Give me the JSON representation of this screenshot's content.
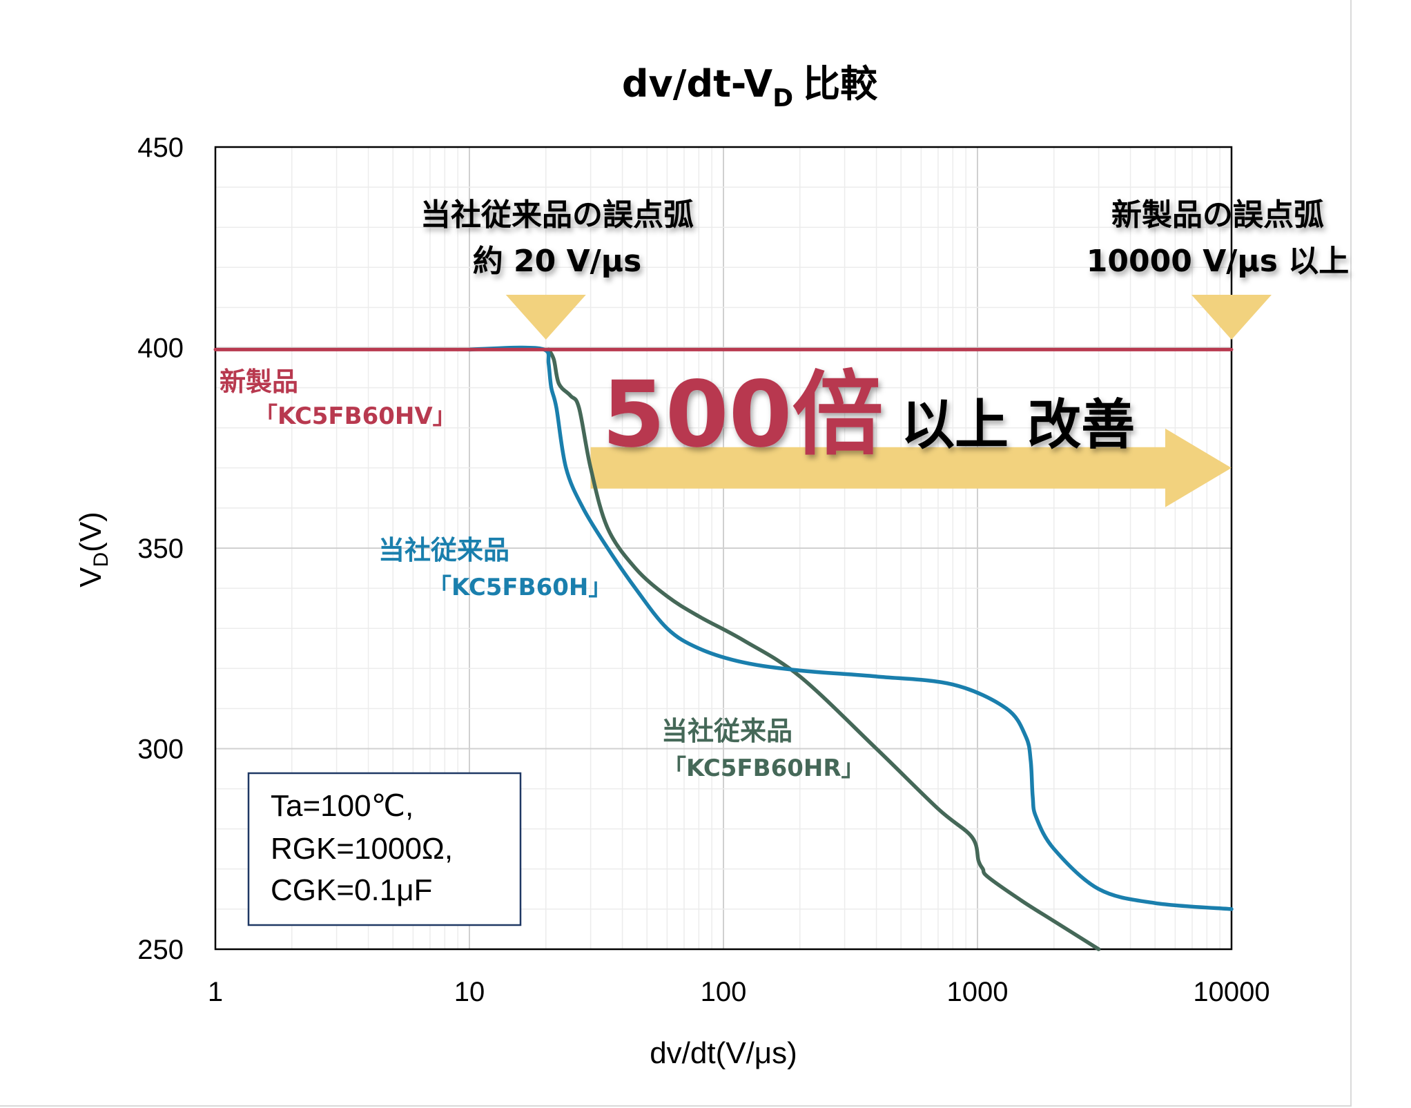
{
  "chart_data": {
    "type": "line",
    "title": "dv/dt-V",
    "title_subscript": "D",
    "title_suffix": "比較",
    "xlabel": "dv/dt(V/μs)",
    "ylabel": "V",
    "ylabel_subscript": "D",
    "ylabel_suffix": "(V)",
    "x_scale": "log",
    "xlim": [
      1,
      10000
    ],
    "ylim": [
      250,
      450
    ],
    "x_ticks": [
      "1",
      "10",
      "100",
      "1000",
      "10000"
    ],
    "y_ticks": [
      "250",
      "300",
      "350",
      "400",
      "450"
    ],
    "grid": true,
    "series": [
      {
        "name": "新製品「KC5FB60HV」",
        "label_line1": "新製品",
        "label_line2": "「KC5FB60HV」",
        "color": "#b8394f",
        "x": [
          1,
          10000
        ],
        "y": [
          399.5,
          399.5
        ]
      },
      {
        "name": "当社従来品「KC5FB60H」",
        "label_line1": "当社従来品",
        "label_line2": "「KC5FB60H」",
        "color": "#1a7fad",
        "x": [
          10,
          16,
          20,
          20.5,
          21,
          22,
          24,
          28,
          35,
          45,
          60,
          80,
          120,
          200,
          400,
          800,
          1300,
          1550,
          1620,
          1650,
          1700,
          2000,
          3000,
          5000,
          10000
        ],
        "y": [
          399.5,
          400,
          399.3,
          396,
          390,
          385,
          370,
          360,
          350,
          340,
          330,
          325,
          321.5,
          319.5,
          318,
          316,
          310,
          303,
          297,
          288,
          283,
          275,
          265,
          261.5,
          260
        ]
      },
      {
        "name": "当社従来品「KC5FB60HR」",
        "label_line1": "当社従来品",
        "label_line2": "「KC5FB60HR」",
        "color": "#456858",
        "x": [
          20.5,
          21.5,
          22.5,
          25,
          27,
          30,
          35,
          45,
          60,
          80,
          120,
          200,
          400,
          700,
          950,
          1010,
          1050,
          1100,
          1500,
          2000,
          3000
        ],
        "y": [
          399.5,
          397,
          391,
          388,
          385,
          370,
          355,
          345,
          338,
          333,
          327,
          318,
          300,
          285,
          278,
          272,
          270,
          268,
          262,
          257,
          250
        ]
      }
    ],
    "annotations": {
      "old_line1": "当社従来品の誤点弧",
      "old_line2": "約 20 V/μs",
      "old_x": 20,
      "new_line1": "新製品の誤点弧",
      "new_line2": "10000 V/μs 以上",
      "new_x": 10000,
      "big_number": "500倍",
      "improvement": "以上 改善",
      "arrow_from_x": 30,
      "arrow_to_x": 10000,
      "arrow_y": 370,
      "arrow_color": "#f2d27e"
    },
    "conditions": [
      "Ta=100℃,",
      "RGK=1000Ω,",
      "CGK=0.1μF"
    ]
  }
}
